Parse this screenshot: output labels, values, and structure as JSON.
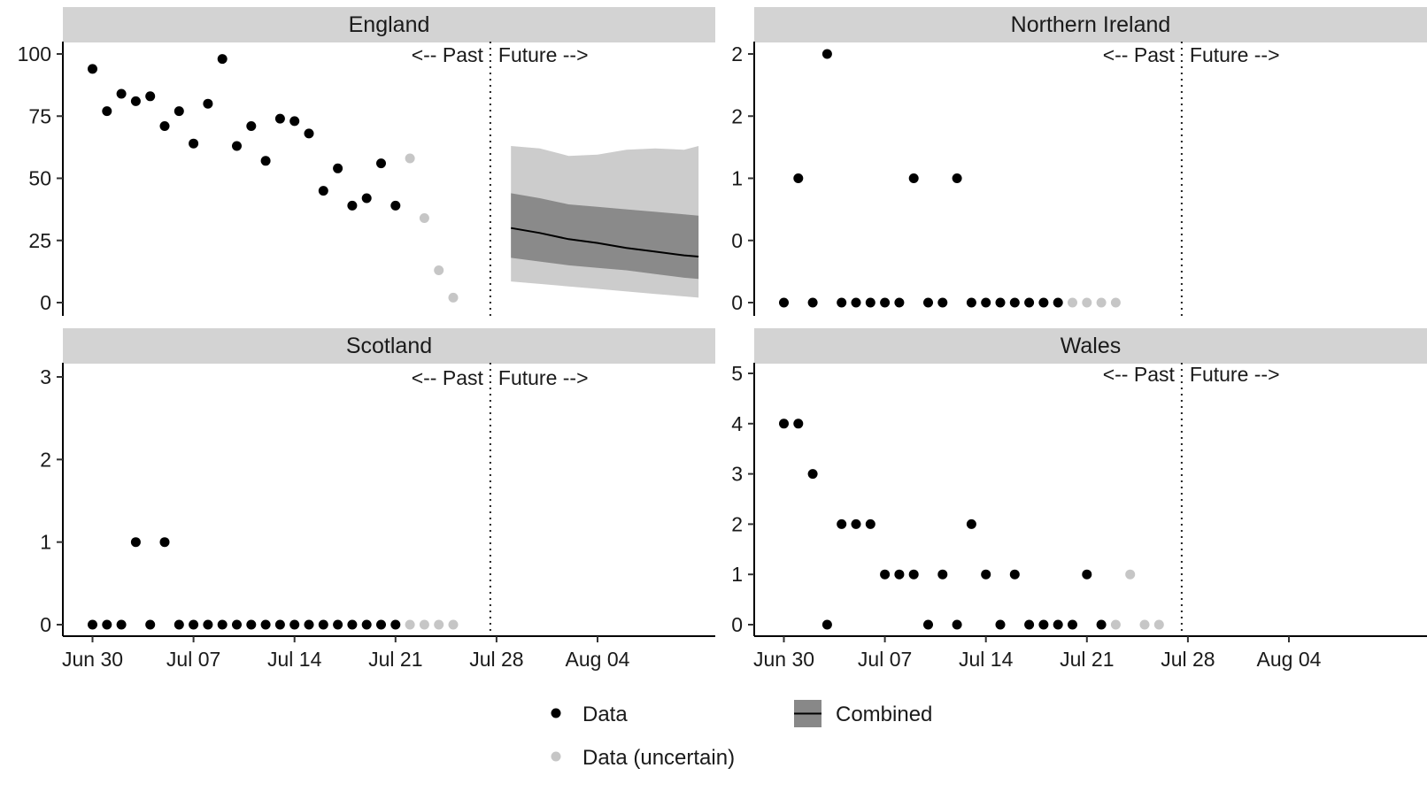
{
  "chart_data": [
    {
      "type": "scatter",
      "title": "England",
      "ylim": [
        0,
        100
      ],
      "yticks": [
        {
          "value": 0,
          "label": "0"
        },
        {
          "value": 25,
          "label": "25"
        },
        {
          "value": 50,
          "label": "50"
        },
        {
          "value": 75,
          "label": "75"
        },
        {
          "value": 100,
          "label": "100"
        }
      ],
      "past_label": "<-- Past",
      "future_label": "Future -->",
      "divider_date": "2020-07-28",
      "series": [
        {
          "name": "Data",
          "points": [
            {
              "x": "2020-06-30",
              "y": 94
            },
            {
              "x": "2020-07-01",
              "y": 77
            },
            {
              "x": "2020-07-02",
              "y": 84
            },
            {
              "x": "2020-07-03",
              "y": 81
            },
            {
              "x": "2020-07-04",
              "y": 83
            },
            {
              "x": "2020-07-05",
              "y": 71
            },
            {
              "x": "2020-07-06",
              "y": 77
            },
            {
              "x": "2020-07-07",
              "y": 64
            },
            {
              "x": "2020-07-08",
              "y": 80
            },
            {
              "x": "2020-07-09",
              "y": 98
            },
            {
              "x": "2020-07-10",
              "y": 63
            },
            {
              "x": "2020-07-11",
              "y": 71
            },
            {
              "x": "2020-07-12",
              "y": 57
            },
            {
              "x": "2020-07-13",
              "y": 74
            },
            {
              "x": "2020-07-14",
              "y": 73
            },
            {
              "x": "2020-07-15",
              "y": 68
            },
            {
              "x": "2020-07-16",
              "y": 45
            },
            {
              "x": "2020-07-17",
              "y": 54
            },
            {
              "x": "2020-07-18",
              "y": 39
            },
            {
              "x": "2020-07-19",
              "y": 42
            },
            {
              "x": "2020-07-20",
              "y": 56
            },
            {
              "x": "2020-07-21",
              "y": 39
            }
          ]
        },
        {
          "name": "Data (uncertain)",
          "points": [
            {
              "x": "2020-07-22",
              "y": 58
            },
            {
              "x": "2020-07-23",
              "y": 34
            },
            {
              "x": "2020-07-24",
              "y": 13
            },
            {
              "x": "2020-07-25",
              "y": 2
            }
          ]
        }
      ],
      "forecast": {
        "x": [
          "2020-07-29",
          "2020-07-31",
          "2020-08-02",
          "2020-08-04",
          "2020-08-06",
          "2020-08-08",
          "2020-08-10",
          "2020-08-11"
        ],
        "median": [
          30,
          28,
          25.5,
          24,
          22,
          20.5,
          19,
          18.5
        ],
        "inner_low": [
          18,
          16.5,
          15,
          14,
          13,
          11.5,
          10,
          9.5
        ],
        "inner_high": [
          44,
          42,
          39.5,
          38.5,
          37.5,
          36.5,
          35.5,
          35
        ],
        "outer_low": [
          8.5,
          7.5,
          6.5,
          5.5,
          4.5,
          3.5,
          2.5,
          2
        ],
        "outer_high": [
          63,
          62,
          59,
          59.5,
          61.5,
          62,
          61.5,
          63
        ]
      }
    },
    {
      "type": "scatter",
      "title": "Northern Ireland",
      "ylim": [
        0,
        2
      ],
      "yticks": [
        {
          "value": 0,
          "label": "0"
        },
        {
          "value": 0.5,
          "label": "0"
        },
        {
          "value": 1,
          "label": "1"
        },
        {
          "value": 1.5,
          "label": "2"
        },
        {
          "value": 2,
          "label": "2"
        }
      ],
      "past_label": "<-- Past",
      "future_label": "Future -->",
      "divider_date": "2020-07-28",
      "series": [
        {
          "name": "Data",
          "points": [
            {
              "x": "2020-06-30",
              "y": 0
            },
            {
              "x": "2020-07-01",
              "y": 1
            },
            {
              "x": "2020-07-02",
              "y": 0
            },
            {
              "x": "2020-07-03",
              "y": 2
            },
            {
              "x": "2020-07-04",
              "y": 0
            },
            {
              "x": "2020-07-05",
              "y": 0
            },
            {
              "x": "2020-07-06",
              "y": 0
            },
            {
              "x": "2020-07-07",
              "y": 0
            },
            {
              "x": "2020-07-08",
              "y": 0
            },
            {
              "x": "2020-07-09",
              "y": 1
            },
            {
              "x": "2020-07-10",
              "y": 0
            },
            {
              "x": "2020-07-11",
              "y": 0
            },
            {
              "x": "2020-07-12",
              "y": 1
            },
            {
              "x": "2020-07-13",
              "y": 0
            },
            {
              "x": "2020-07-14",
              "y": 0
            },
            {
              "x": "2020-07-15",
              "y": 0
            },
            {
              "x": "2020-07-16",
              "y": 0
            },
            {
              "x": "2020-07-17",
              "y": 0
            },
            {
              "x": "2020-07-18",
              "y": 0
            },
            {
              "x": "2020-07-19",
              "y": 0
            }
          ]
        },
        {
          "name": "Data (uncertain)",
          "points": [
            {
              "x": "2020-07-20",
              "y": 0
            },
            {
              "x": "2020-07-21",
              "y": 0
            },
            {
              "x": "2020-07-22",
              "y": 0
            },
            {
              "x": "2020-07-23",
              "y": 0
            }
          ]
        }
      ]
    },
    {
      "type": "scatter",
      "title": "Scotland",
      "ylim": [
        0,
        3
      ],
      "yticks": [
        {
          "value": 0,
          "label": "0"
        },
        {
          "value": 1,
          "label": "1"
        },
        {
          "value": 2,
          "label": "2"
        },
        {
          "value": 3,
          "label": "3"
        }
      ],
      "past_label": "<-- Past",
      "future_label": "Future -->",
      "divider_date": "2020-07-28",
      "xticks": [
        "Jun 30",
        "Jul 07",
        "Jul 14",
        "Jul 21",
        "Jul 28",
        "Aug 04"
      ],
      "series": [
        {
          "name": "Data",
          "points": [
            {
              "x": "2020-06-30",
              "y": 0
            },
            {
              "x": "2020-07-01",
              "y": 0
            },
            {
              "x": "2020-07-02",
              "y": 0
            },
            {
              "x": "2020-07-03",
              "y": 1
            },
            {
              "x": "2020-07-04",
              "y": 0
            },
            {
              "x": "2020-07-05",
              "y": 1
            },
            {
              "x": "2020-07-06",
              "y": 0
            },
            {
              "x": "2020-07-07",
              "y": 0
            },
            {
              "x": "2020-07-08",
              "y": 0
            },
            {
              "x": "2020-07-09",
              "y": 0
            },
            {
              "x": "2020-07-10",
              "y": 0
            },
            {
              "x": "2020-07-11",
              "y": 0
            },
            {
              "x": "2020-07-12",
              "y": 0
            },
            {
              "x": "2020-07-13",
              "y": 0
            },
            {
              "x": "2020-07-14",
              "y": 0
            },
            {
              "x": "2020-07-15",
              "y": 0
            },
            {
              "x": "2020-07-16",
              "y": 0
            },
            {
              "x": "2020-07-17",
              "y": 0
            },
            {
              "x": "2020-07-18",
              "y": 0
            },
            {
              "x": "2020-07-19",
              "y": 0
            },
            {
              "x": "2020-07-20",
              "y": 0
            },
            {
              "x": "2020-07-21",
              "y": 0
            }
          ]
        },
        {
          "name": "Data (uncertain)",
          "points": [
            {
              "x": "2020-07-22",
              "y": 0
            },
            {
              "x": "2020-07-23",
              "y": 0
            },
            {
              "x": "2020-07-24",
              "y": 0
            },
            {
              "x": "2020-07-25",
              "y": 0
            }
          ]
        }
      ]
    },
    {
      "type": "scatter",
      "title": "Wales",
      "ylim": [
        0,
        5
      ],
      "yticks": [
        {
          "value": 0,
          "label": "0"
        },
        {
          "value": 1,
          "label": "1"
        },
        {
          "value": 2,
          "label": "2"
        },
        {
          "value": 3,
          "label": "3"
        },
        {
          "value": 4,
          "label": "4"
        },
        {
          "value": 5,
          "label": "5"
        }
      ],
      "past_label": "<-- Past",
      "future_label": "Future -->",
      "divider_date": "2020-07-28",
      "xticks": [
        "Jun 30",
        "Jul 07",
        "Jul 14",
        "Jul 21",
        "Jul 28",
        "Aug 04"
      ],
      "series": [
        {
          "name": "Data",
          "points": [
            {
              "x": "2020-06-30",
              "y": 4
            },
            {
              "x": "2020-07-01",
              "y": 4
            },
            {
              "x": "2020-07-02",
              "y": 3
            },
            {
              "x": "2020-07-03",
              "y": 0
            },
            {
              "x": "2020-07-04",
              "y": 2
            },
            {
              "x": "2020-07-05",
              "y": 2
            },
            {
              "x": "2020-07-06",
              "y": 2
            },
            {
              "x": "2020-07-07",
              "y": 1
            },
            {
              "x": "2020-07-08",
              "y": 1
            },
            {
              "x": "2020-07-09",
              "y": 1
            },
            {
              "x": "2020-07-10",
              "y": 0
            },
            {
              "x": "2020-07-11",
              "y": 1
            },
            {
              "x": "2020-07-12",
              "y": 0
            },
            {
              "x": "2020-07-13",
              "y": 2
            },
            {
              "x": "2020-07-14",
              "y": 1
            },
            {
              "x": "2020-07-15",
              "y": 0
            },
            {
              "x": "2020-07-16",
              "y": 1
            },
            {
              "x": "2020-07-17",
              "y": 0
            },
            {
              "x": "2020-07-18",
              "y": 0
            },
            {
              "x": "2020-07-19",
              "y": 0
            },
            {
              "x": "2020-07-20",
              "y": 0
            },
            {
              "x": "2020-07-21",
              "y": 1
            },
            {
              "x": "2020-07-22",
              "y": 0
            }
          ]
        },
        {
          "name": "Data (uncertain)",
          "points": [
            {
              "x": "2020-07-23",
              "y": 0
            },
            {
              "x": "2020-07-24",
              "y": 1
            },
            {
              "x": "2020-07-25",
              "y": 0
            },
            {
              "x": "2020-07-26",
              "y": 0
            }
          ]
        }
      ]
    }
  ],
  "legend": {
    "items": [
      {
        "label": "Data",
        "symbol": "point",
        "color": "#000000"
      },
      {
        "label": "Data (uncertain)",
        "symbol": "point",
        "color": "#c6c6c6"
      },
      {
        "label": "Combined",
        "symbol": "line-band",
        "color": "#000000",
        "band_color": "#888888"
      }
    ]
  },
  "colors": {
    "strip": "#d3d3d3",
    "data": "#000000",
    "uncertain": "#c6c6c6",
    "band_outer": "#cccccc",
    "band_inner": "#8a8a8a",
    "median": "#000000"
  }
}
